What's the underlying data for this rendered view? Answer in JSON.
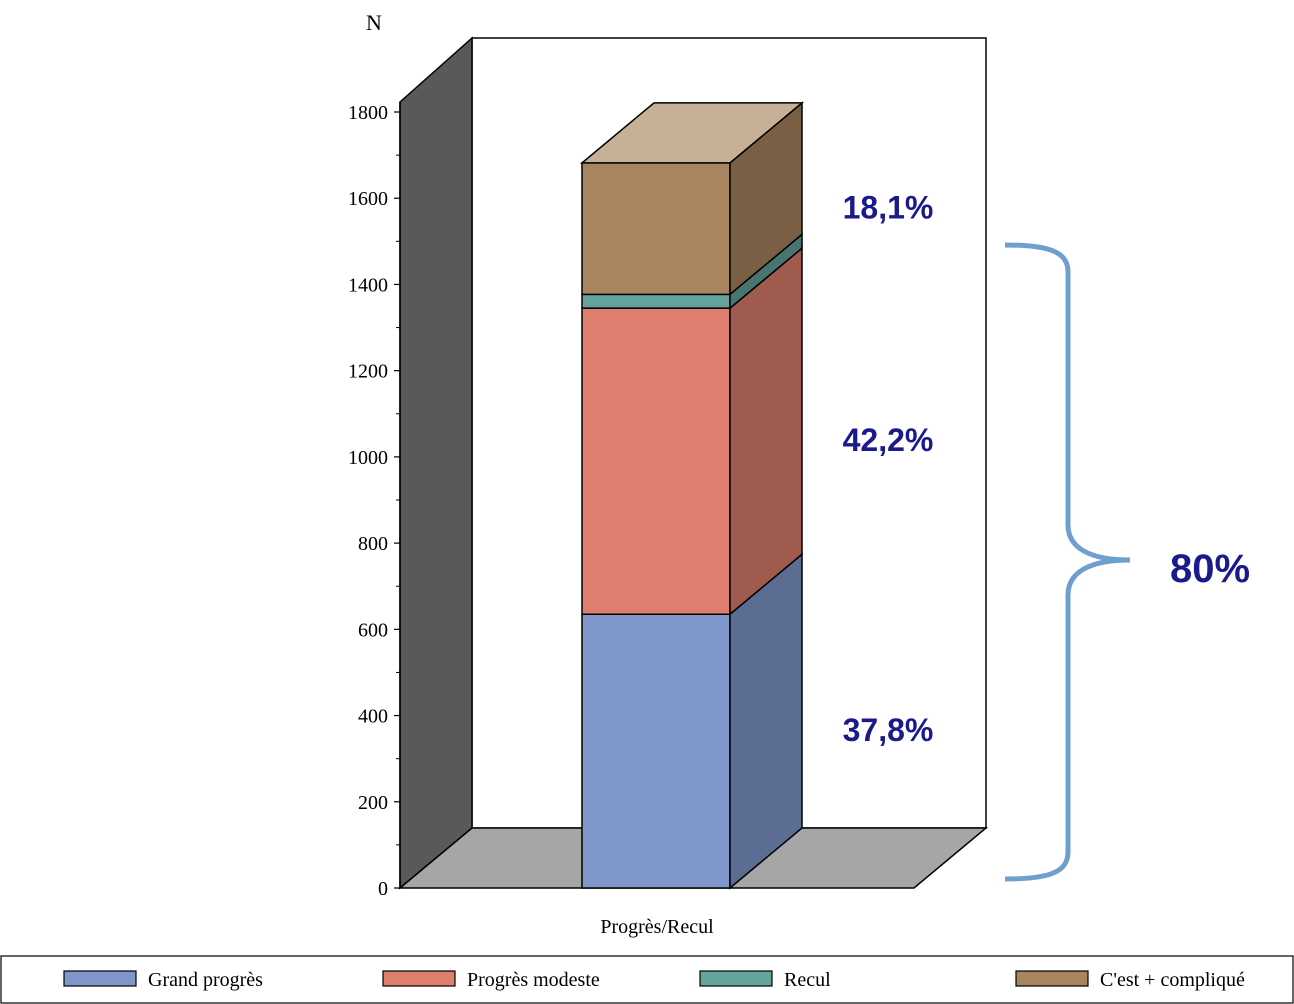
{
  "chart_data": {
    "type": "bar",
    "stacked": true,
    "three_d": true,
    "ylabel": "N",
    "xlabel": "",
    "categories": [
      "Progrès/Recul"
    ],
    "ylim": [
      0,
      1800
    ],
    "yticks": [
      0,
      200,
      400,
      600,
      800,
      1000,
      1200,
      1400,
      1600,
      1800
    ],
    "series": [
      {
        "name": "Grand progrès",
        "values": [
          635
        ],
        "color": "#7f97cb"
      },
      {
        "name": "Progrès modeste",
        "values": [
          710
        ],
        "color": "#de7e6e"
      },
      {
        "name": "Recul",
        "values": [
          32
        ],
        "color": "#64a39b"
      },
      {
        "name": "C'est + compliqué",
        "values": [
          305
        ],
        "color": "#a8855e"
      }
    ],
    "annotations": [
      {
        "text": "37,8%",
        "series": "Grand progrès"
      },
      {
        "text": "42,2%",
        "series": "Progrès modeste"
      },
      {
        "text": "18,1%",
        "series": "C'est + compliqué"
      }
    ],
    "brace_label": "80%",
    "annotation_color": "#1a1a8c",
    "brace_color": "#6f9fcf",
    "legend_position": "bottom"
  }
}
